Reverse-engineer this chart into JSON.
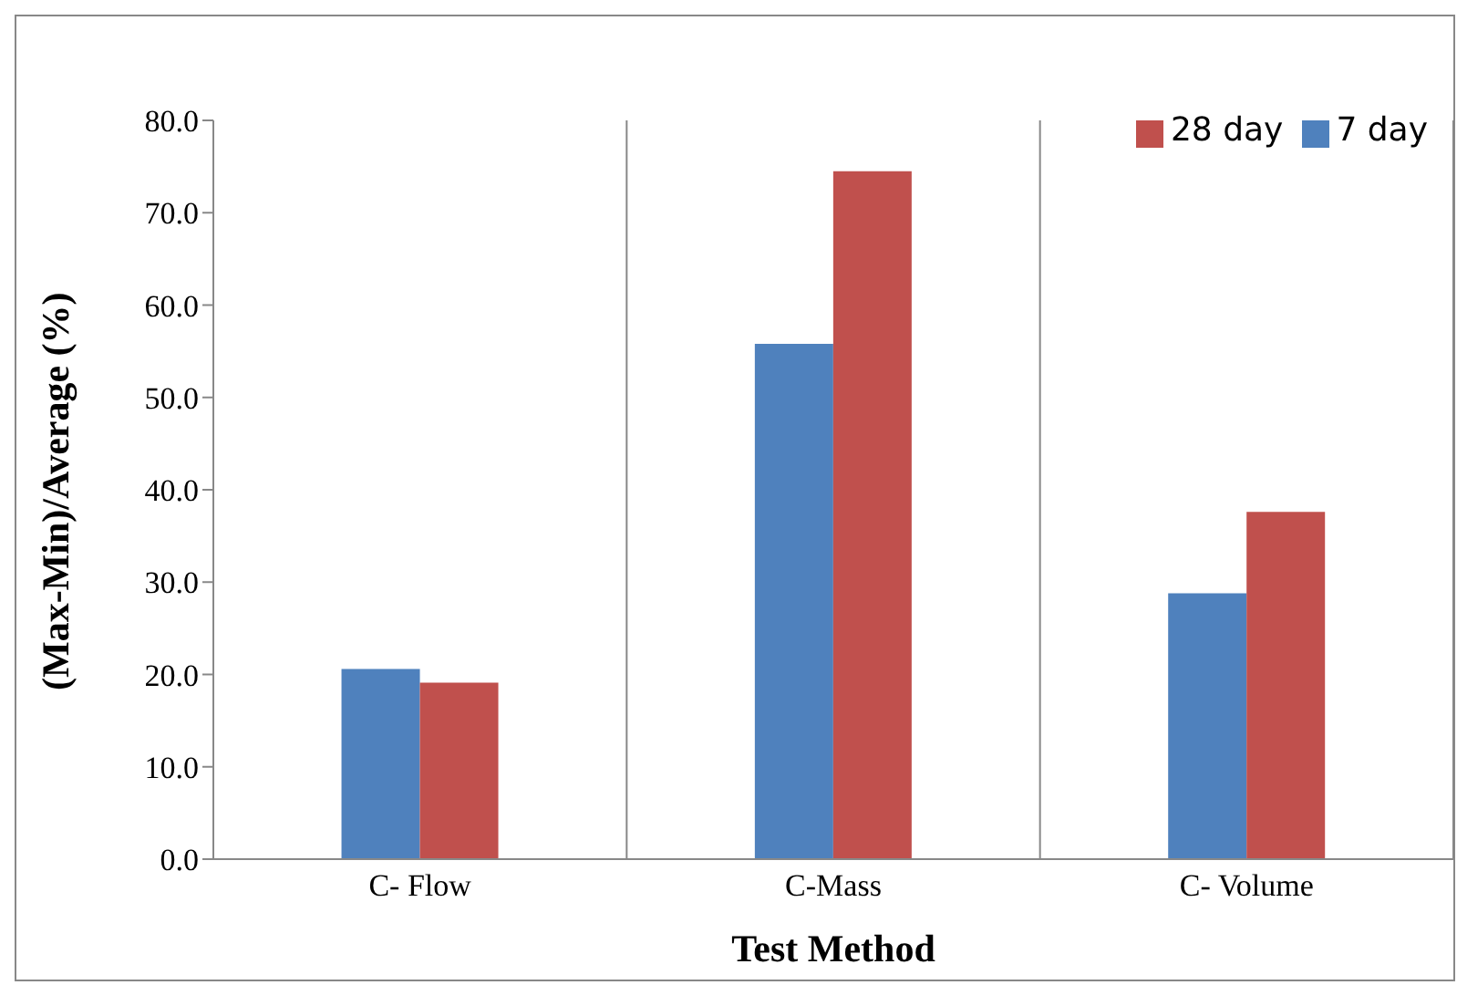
{
  "chart_data": {
    "type": "bar",
    "xlabel": "Test Method",
    "ylabel": "(Max-Min)/Average (%)",
    "categories": [
      "C- Flow",
      "C-Mass",
      "C- Volume"
    ],
    "series": [
      {
        "name": "7 day",
        "color": "#4f81bd",
        "values": [
          20.6,
          55.8,
          28.8
        ]
      },
      {
        "name": "28 day",
        "color": "#c0504d",
        "values": [
          19.1,
          74.5,
          37.6
        ]
      }
    ],
    "ylim": [
      0,
      80
    ],
    "yticks": [
      {
        "value": 0,
        "label": "0.0"
      },
      {
        "value": 10,
        "label": "10.0"
      },
      {
        "value": 20,
        "label": "20.0"
      },
      {
        "value": 30,
        "label": "30.0"
      },
      {
        "value": 40,
        "label": "40.0"
      },
      {
        "value": 50,
        "label": "50.0"
      },
      {
        "value": 60,
        "label": "60.0"
      },
      {
        "value": 70,
        "label": "70.0"
      },
      {
        "value": 80,
        "label": "80.0"
      }
    ],
    "grid": "x",
    "legend": "top right"
  }
}
